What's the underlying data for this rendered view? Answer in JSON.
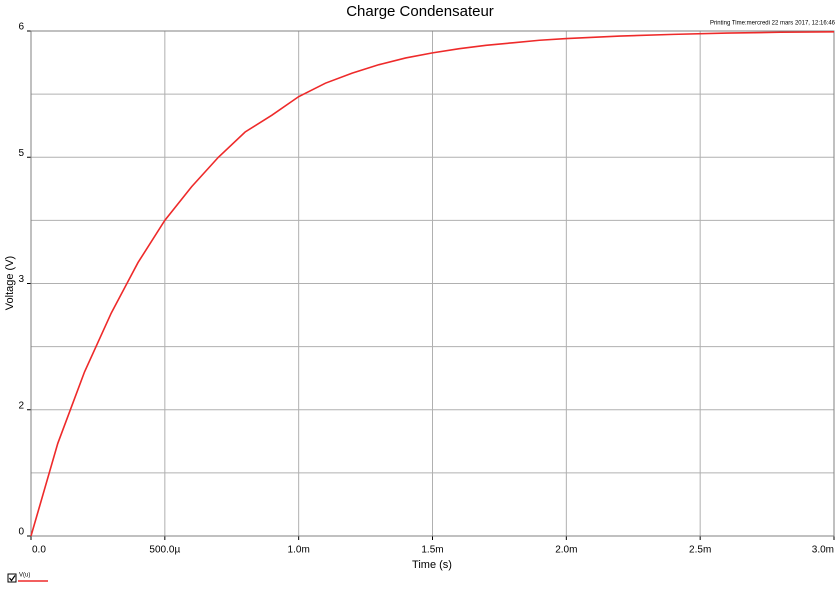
{
  "chart_data": {
    "type": "line",
    "title": "Charge Condensateur",
    "subtitle": "Printing Time:mercredi 22 mars 2017, 12:16:46",
    "xlabel": "Time (s)",
    "ylabel": "Voltage (V)",
    "x": [
      0,
      0.0001,
      0.0002,
      0.0003,
      0.0004,
      0.0005,
      0.0006,
      0.0007,
      0.0008,
      0.0009,
      0.001,
      0.0011,
      0.0012,
      0.0013,
      0.0014,
      0.0015,
      0.0016,
      0.0017,
      0.0018,
      0.0019,
      0.002,
      0.0022,
      0.0024,
      0.0026,
      0.0028,
      0.003
    ],
    "series": [
      {
        "name": "V(u)",
        "color": "#ee2a2a",
        "values": [
          0,
          1.1,
          1.95,
          2.65,
          3.25,
          3.75,
          4.15,
          4.5,
          4.8,
          5.0,
          5.22,
          5.38,
          5.5,
          5.6,
          5.68,
          5.74,
          5.79,
          5.83,
          5.86,
          5.89,
          5.91,
          5.94,
          5.96,
          5.975,
          5.985,
          5.99
        ]
      }
    ],
    "xlim": [
      0,
      0.003
    ],
    "xticks": [
      {
        "value": 0,
        "label": "0.0"
      },
      {
        "value": 0.0005,
        "label": "500.0µ"
      },
      {
        "value": 0.001,
        "label": "1.0m"
      },
      {
        "value": 0.0015,
        "label": "1.5m"
      },
      {
        "value": 0.002,
        "label": "2.0m"
      },
      {
        "value": 0.0025,
        "label": "2.5m"
      },
      {
        "value": 0.003,
        "label": "3.0m"
      }
    ],
    "ylim": [
      0,
      6
    ],
    "yticks": [
      0,
      {
        "value": 1.5,
        "label": "2"
      },
      3,
      {
        "value": 4.5,
        "label": "5"
      },
      6
    ],
    "yminor": [
      0.75,
      2.25,
      3.75,
      5.25
    ],
    "grid": true,
    "legend": "bottom-left"
  }
}
